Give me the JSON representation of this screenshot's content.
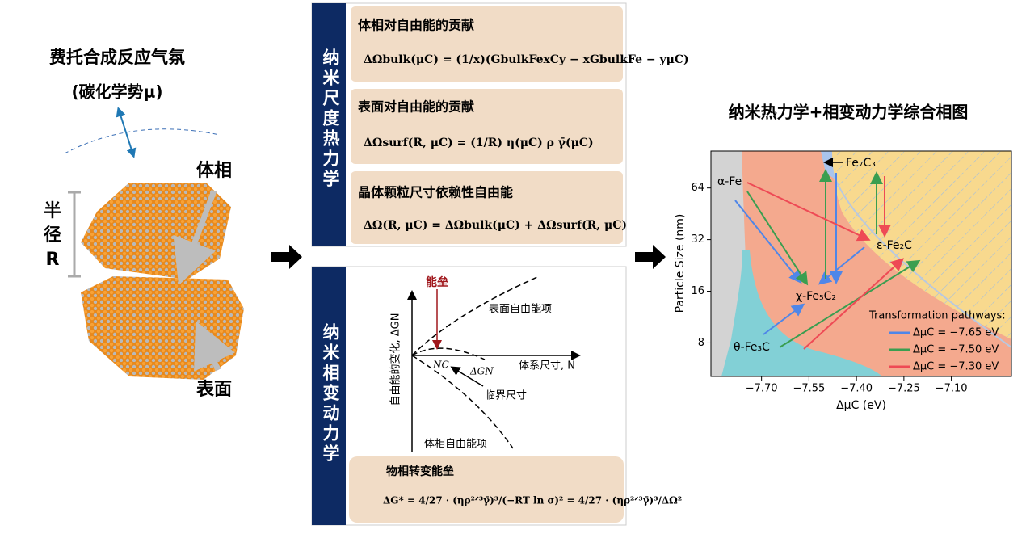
{
  "left": {
    "title": "费托合成反应气氛",
    "subtitle": "(碳化学势μ)",
    "bulk_label": "体相",
    "radius_label": [
      "半",
      "径",
      "R"
    ],
    "surface_label": "表面"
  },
  "thermo": {
    "side_label": "纳米尺度热力学",
    "boxes": [
      {
        "heading": "体相对自由能的贡献",
        "formula": "ΔΩbulk(μC) = (1/x)(GbulkFexCy − xGbulkFe − yμC)"
      },
      {
        "heading": "表面对自由能的贡献",
        "formula": "ΔΩsurf(R, μC) = (1/R) η(μC) ρ γ̄(μC)"
      },
      {
        "heading": "晶体颗粒尺寸依赖性自由能",
        "formula": "ΔΩ(R, μC) = ΔΩbulk(μC) + ΔΩsurf(R, μC)"
      }
    ]
  },
  "kinetics": {
    "side_label": "纳米相变动力学",
    "graph": {
      "barrier": "能垒",
      "surface_term": "表面自由能项",
      "x_label": "体系尺寸, N",
      "critical_n": "NC",
      "delta_g": "ΔGN",
      "critical_size": "临界尺寸",
      "bulk_term": "体相自由能项",
      "y_label": "自由能的变化, ΔGN"
    },
    "box": {
      "heading": "物相转变能垒",
      "formula": "ΔG* = 4/27 · (ηρ²ᐟ³γ̄)³/(−RT ln σ)² = 4/27 · (ηρ²ᐟ³γ̄)³/ΔΩ²"
    }
  },
  "chart_data": {
    "type": "phase-diagram",
    "title": "纳米热力学+相变动力学综合相图",
    "x_label": "ΔμC (eV)",
    "y_label": "Particle Size (nm)",
    "xlim": [
      -7.86,
      -6.91
    ],
    "ylim": [
      5.1,
      105
    ],
    "y_scale": "log",
    "xticks": [
      {
        "value": -7.7,
        "label": "−7.70"
      },
      {
        "value": -7.55,
        "label": "−7.55"
      },
      {
        "value": -7.4,
        "label": "−7.40"
      },
      {
        "value": -7.25,
        "label": "−7.25"
      },
      {
        "value": -7.1,
        "label": "−7.10"
      }
    ],
    "yticks": [
      8,
      16,
      32,
      64
    ],
    "phases": [
      {
        "name": "α-Fe",
        "color": "#d3d3d3"
      },
      {
        "name": "χ-Fe₅C₂",
        "color": "#f4a98e"
      },
      {
        "name": "θ-Fe₃C",
        "color": "#82d0d6"
      },
      {
        "name": "ε-Fe₂C",
        "color": "#f8d98e"
      },
      {
        "name": "Fe₇C₃",
        "color": "#a9c4ec"
      }
    ],
    "legend": {
      "title": "Transformation pathways:",
      "position": "lower right"
    },
    "series": [
      {
        "name": "ΔμC = −7.65 eV",
        "color": "#4f86e8"
      },
      {
        "name": "ΔμC = −7.50 eV",
        "color": "#3a9e50"
      },
      {
        "name": "ΔμC = −7.30 eV",
        "color": "#ee4a55"
      }
    ]
  }
}
